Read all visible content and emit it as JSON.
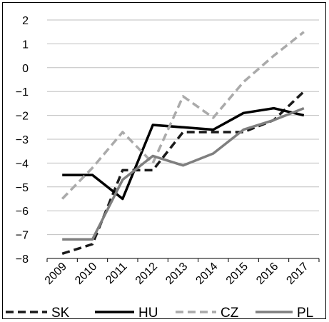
{
  "chart_data": {
    "type": "line",
    "title": "",
    "xlabel": "",
    "ylabel": "",
    "x": [
      "2009",
      "2010",
      "2011",
      "2012",
      "2013",
      "2014",
      "2015",
      "2016",
      "2017"
    ],
    "ylim": [
      -8,
      2
    ],
    "yticks": [
      "2",
      "1",
      "0",
      "−1",
      "−2",
      "−3",
      "−4",
      "−5",
      "−6",
      "−7",
      "−8"
    ],
    "grid": true,
    "legend_position": "bottom",
    "series": [
      {
        "name": "SK",
        "values": [
          -7.8,
          -7.4,
          -4.3,
          -4.3,
          -2.7,
          -2.7,
          -2.7,
          -2.2,
          -1.0
        ],
        "color": "#1a1a1a",
        "style": "dashed"
      },
      {
        "name": "HU",
        "values": [
          -4.5,
          -4.5,
          -5.5,
          -2.4,
          -2.5,
          -2.6,
          -1.9,
          -1.7,
          -2.0
        ],
        "color": "#000000",
        "style": "solid"
      },
      {
        "name": "CZ",
        "values": [
          -5.5,
          -4.2,
          -2.7,
          -4.0,
          -1.2,
          -2.1,
          -0.6,
          0.5,
          1.5
        ],
        "color": "#aaaaaa",
        "style": "dashed"
      },
      {
        "name": "PL",
        "values": [
          -7.2,
          -7.2,
          -4.7,
          -3.7,
          -4.1,
          -3.6,
          -2.6,
          -2.2,
          -1.7
        ],
        "color": "#7f7f7f",
        "style": "solid"
      }
    ]
  }
}
